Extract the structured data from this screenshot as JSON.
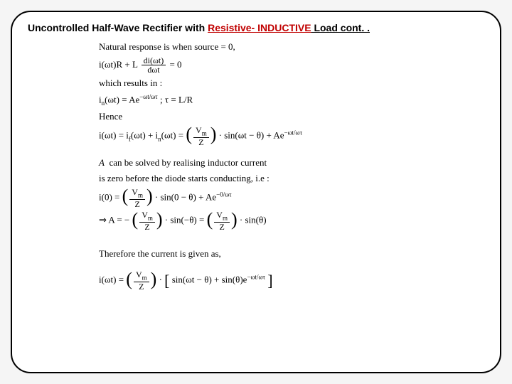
{
  "title": {
    "prefix": "Uncontrolled Half-Wave Rectifier with ",
    "red": "Resistive- INDUCTIVE",
    "suffix": " Load cont. ."
  },
  "lines": {
    "l1": "Natural response is when source = 0,",
    "eq1_lhs": "i(ωt)R + L",
    "eq1_num": "di(ωt)",
    "eq1_den": "dωt",
    "eq1_rhs": " = 0",
    "l2": "which results in :",
    "eq2_lhs": "i",
    "eq2_sub": "n",
    "eq2_arg": "(ωt) = Ae",
    "eq2_exp": "−ωt/ωτ",
    "eq2_tail": "  ; τ = L/R",
    "l3": "Hence",
    "eq3_lhs": "i(ωt) = i",
    "eq3_f": "f",
    "eq3_mid1": "(ωt) + i",
    "eq3_n": "n",
    "eq3_mid2": "(ωt) = ",
    "eq3_Vm": "V",
    "eq3_m": "m",
    "eq3_Z": "Z",
    "eq3_sin": " · sin(ωt − θ) + Ae",
    "eq3_exp": "−ωt/ωτ",
    "l4a": "A  can be solved by realising inductor current",
    "l4b": "is zero before the diode starts conducting, i.e :",
    "eq4_lhs": "i(0) = ",
    "eq4_sin": " · sin(0 − θ) + Ae",
    "eq4_exp": "−0/ωτ",
    "eq5_arrow": "⇒  A = −",
    "eq5_sin1": " · sin(−θ) = ",
    "eq5_sin2": " · sin(θ)",
    "l5": "Therefore the current is given as,",
    "eq6_lhs": "i(ωt) = ",
    "eq6_mid": " · ",
    "eq6_inside": "sin(ωt − θ) + sin(θ)e",
    "eq6_exp": "−ωt/ωτ"
  },
  "colors": {
    "accent": "#c00000",
    "text": "#000000",
    "bg": "#ffffff",
    "border": "#000000"
  },
  "fontsize": {
    "title": 14,
    "body": 13
  }
}
